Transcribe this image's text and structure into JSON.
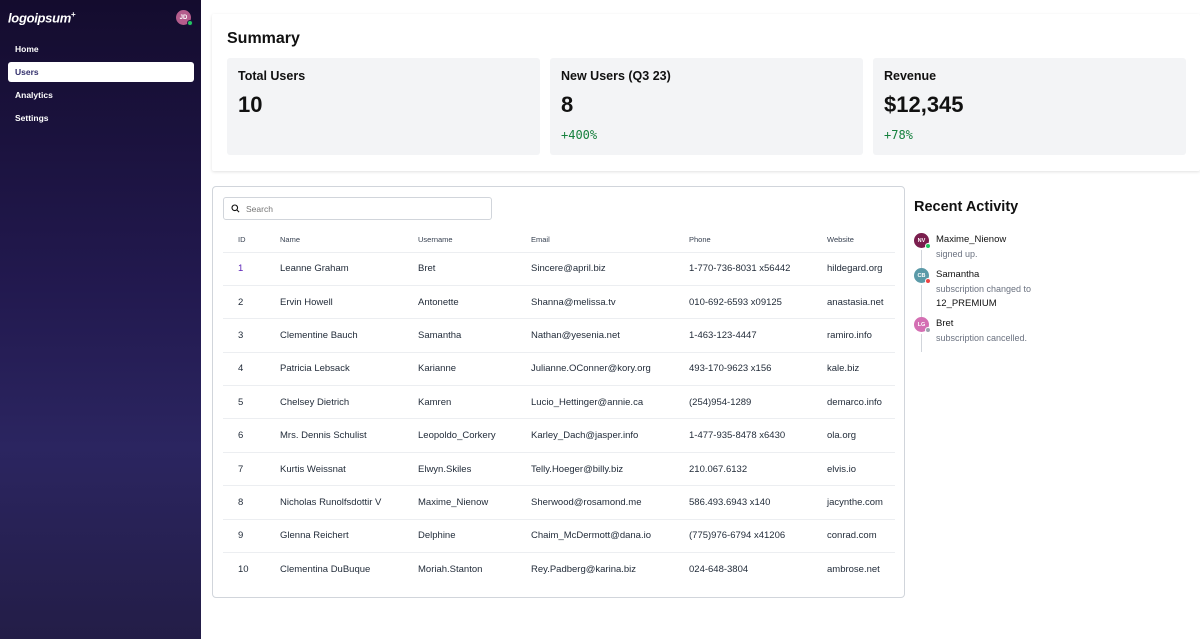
{
  "brand": {
    "logo": "logoipsum",
    "logo_mark": "+"
  },
  "user": {
    "initials": "JD",
    "status_color": "#22c55e"
  },
  "nav": {
    "items": [
      {
        "label": "Home",
        "active": false
      },
      {
        "label": "Users",
        "active": true
      },
      {
        "label": "Analytics",
        "active": false
      },
      {
        "label": "Settings",
        "active": false
      }
    ]
  },
  "summary": {
    "title": "Summary",
    "cards": [
      {
        "title": "Total Users",
        "value": "10",
        "change": ""
      },
      {
        "title": "New Users (Q3 23)",
        "value": "8",
        "change": "+400%"
      },
      {
        "title": "Revenue",
        "value": "$12,345",
        "change": "+78%"
      }
    ]
  },
  "search": {
    "placeholder": "Search",
    "value": ""
  },
  "table": {
    "headers": {
      "id": "ID",
      "name": "Name",
      "username": "Username",
      "email": "Email",
      "phone": "Phone",
      "website": "Website"
    },
    "rows": [
      {
        "id": "1",
        "name": "Leanne Graham",
        "username": "Bret",
        "email": "Sincere@april.biz",
        "phone": "1-770-736-8031 x56442",
        "website": "hildegard.org"
      },
      {
        "id": "2",
        "name": "Ervin Howell",
        "username": "Antonette",
        "email": "Shanna@melissa.tv",
        "phone": "010-692-6593 x09125",
        "website": "anastasia.net"
      },
      {
        "id": "3",
        "name": "Clementine Bauch",
        "username": "Samantha",
        "email": "Nathan@yesenia.net",
        "phone": "1-463-123-4447",
        "website": "ramiro.info"
      },
      {
        "id": "4",
        "name": "Patricia Lebsack",
        "username": "Karianne",
        "email": "Julianne.OConner@kory.org",
        "phone": "493-170-9623 x156",
        "website": "kale.biz"
      },
      {
        "id": "5",
        "name": "Chelsey Dietrich",
        "username": "Kamren",
        "email": "Lucio_Hettinger@annie.ca",
        "phone": "(254)954-1289",
        "website": "demarco.info"
      },
      {
        "id": "6",
        "name": "Mrs. Dennis Schulist",
        "username": "Leopoldo_Corkery",
        "email": "Karley_Dach@jasper.info",
        "phone": "1-477-935-8478 x6430",
        "website": "ola.org"
      },
      {
        "id": "7",
        "name": "Kurtis Weissnat",
        "username": "Elwyn.Skiles",
        "email": "Telly.Hoeger@billy.biz",
        "phone": "210.067.6132",
        "website": "elvis.io"
      },
      {
        "id": "8",
        "name": "Nicholas Runolfsdottir V",
        "username": "Maxime_Nienow",
        "email": "Sherwood@rosamond.me",
        "phone": "586.493.6943 x140",
        "website": "jacynthe.com"
      },
      {
        "id": "9",
        "name": "Glenna Reichert",
        "username": "Delphine",
        "email": "Chaim_McDermott@dana.io",
        "phone": "(775)976-6794 x41206",
        "website": "conrad.com"
      },
      {
        "id": "10",
        "name": "Clementina DuBuque",
        "username": "Moriah.Stanton",
        "email": "Rey.Padberg@karina.biz",
        "phone": "024-648-3804",
        "website": "ambrose.net"
      }
    ]
  },
  "activity": {
    "title": "Recent Activity",
    "items": [
      {
        "initials": "NV",
        "avatar_color": "#7a1f4e",
        "status_color": "#22c55e",
        "name": "Maxime_Nienow",
        "text": "signed up.",
        "extra": ""
      },
      {
        "initials": "CB",
        "avatar_color": "#5b9aa8",
        "status_color": "#ef4444",
        "name": "Samantha",
        "text": "subscription changed to",
        "extra": "12_PREMIUM"
      },
      {
        "initials": "LG",
        "avatar_color": "#d46fb3",
        "status_color": "#9ca3af",
        "name": "Bret",
        "text": "subscription cancelled.",
        "extra": ""
      }
    ]
  }
}
